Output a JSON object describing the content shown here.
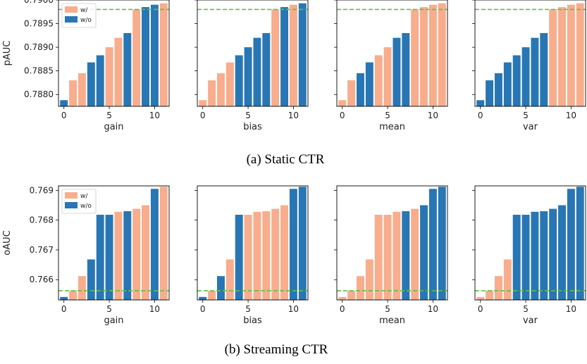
{
  "colors": {
    "with": "#f8ad8d",
    "without": "#2876b4",
    "reference": "#5cc146",
    "frame": "#000000"
  },
  "chart_data": [
    {
      "type": "bar",
      "caption": "(a)  Static CTR",
      "ylabel": "pAUC",
      "ylim": [
        0.78775,
        0.79
      ],
      "yticks": [
        0.788,
        0.7885,
        0.789,
        0.7895,
        0.79
      ],
      "ytick_labels": [
        "0.7880",
        "0.7885",
        "0.7890",
        "0.7895",
        "0.7900"
      ],
      "xticks": [
        0,
        5,
        10
      ],
      "xlim": [
        -0.6,
        11.6
      ],
      "reference_line": 0.7898,
      "legend": {
        "placement": "top-left",
        "entries": [
          "w/",
          "w/o"
        ]
      },
      "panels": [
        {
          "xlabel": "gain",
          "values": [
            0.78788,
            0.7883,
            0.78845,
            0.78868,
            0.78883,
            0.789,
            0.7892,
            0.7893,
            0.7898,
            0.78985,
            0.7899,
            0.78993
          ],
          "with": [
            false,
            true,
            true,
            false,
            false,
            true,
            true,
            false,
            true,
            false,
            false,
            true
          ]
        },
        {
          "xlabel": "bias",
          "values": [
            0.78788,
            0.7883,
            0.78845,
            0.78868,
            0.78883,
            0.789,
            0.7892,
            0.7893,
            0.7898,
            0.78985,
            0.7899,
            0.78993
          ],
          "with": [
            true,
            true,
            true,
            true,
            false,
            false,
            false,
            false,
            true,
            false,
            true,
            false
          ]
        },
        {
          "xlabel": "mean",
          "values": [
            0.78788,
            0.7883,
            0.78845,
            0.78868,
            0.78883,
            0.789,
            0.7892,
            0.7893,
            0.7898,
            0.78985,
            0.7899,
            0.78993
          ],
          "with": [
            true,
            true,
            false,
            false,
            true,
            true,
            false,
            false,
            true,
            true,
            true,
            true
          ]
        },
        {
          "xlabel": "var",
          "values": [
            0.78788,
            0.7883,
            0.78845,
            0.78868,
            0.78883,
            0.789,
            0.7892,
            0.7893,
            0.7898,
            0.78985,
            0.7899,
            0.78993
          ],
          "with": [
            false,
            false,
            false,
            false,
            false,
            false,
            false,
            false,
            true,
            true,
            true,
            true
          ]
        }
      ]
    },
    {
      "type": "bar",
      "caption": "(b)  Streaming CTR",
      "ylabel": "oAUC",
      "ylim": [
        0.76532,
        0.76915
      ],
      "yticks": [
        0.766,
        0.767,
        0.768,
        0.769
      ],
      "ytick_labels": [
        "0.766",
        "0.767",
        "0.768",
        "0.769"
      ],
      "xticks": [
        0,
        5,
        10
      ],
      "xlim": [
        -0.6,
        11.6
      ],
      "reference_line": 0.76563,
      "legend": {
        "placement": "top-left",
        "entries": [
          "w/",
          "w/o"
        ]
      },
      "panels": [
        {
          "xlabel": "gain",
          "values": [
            0.76542,
            0.76563,
            0.76612,
            0.76668,
            0.76818,
            0.76818,
            0.76828,
            0.7683,
            0.76838,
            0.7685,
            0.76905,
            0.76912
          ],
          "with": [
            false,
            true,
            true,
            false,
            false,
            false,
            true,
            false,
            true,
            true,
            false,
            true
          ]
        },
        {
          "xlabel": "bias",
          "values": [
            0.76542,
            0.76563,
            0.76612,
            0.76668,
            0.76818,
            0.76818,
            0.76828,
            0.7683,
            0.76838,
            0.7685,
            0.76905,
            0.76912
          ],
          "with": [
            false,
            true,
            false,
            true,
            false,
            true,
            true,
            true,
            true,
            true,
            false,
            false
          ]
        },
        {
          "xlabel": "mean",
          "values": [
            0.76542,
            0.76563,
            0.76612,
            0.76668,
            0.76818,
            0.76818,
            0.76828,
            0.7683,
            0.76838,
            0.7685,
            0.76905,
            0.76912
          ],
          "with": [
            true,
            true,
            true,
            true,
            true,
            true,
            true,
            false,
            true,
            false,
            false,
            false
          ]
        },
        {
          "xlabel": "var",
          "values": [
            0.76542,
            0.76563,
            0.76612,
            0.76668,
            0.76818,
            0.76818,
            0.76828,
            0.7683,
            0.76838,
            0.7685,
            0.76905,
            0.76912
          ],
          "with": [
            true,
            true,
            true,
            true,
            false,
            false,
            false,
            false,
            false,
            false,
            false,
            false
          ]
        }
      ]
    }
  ]
}
